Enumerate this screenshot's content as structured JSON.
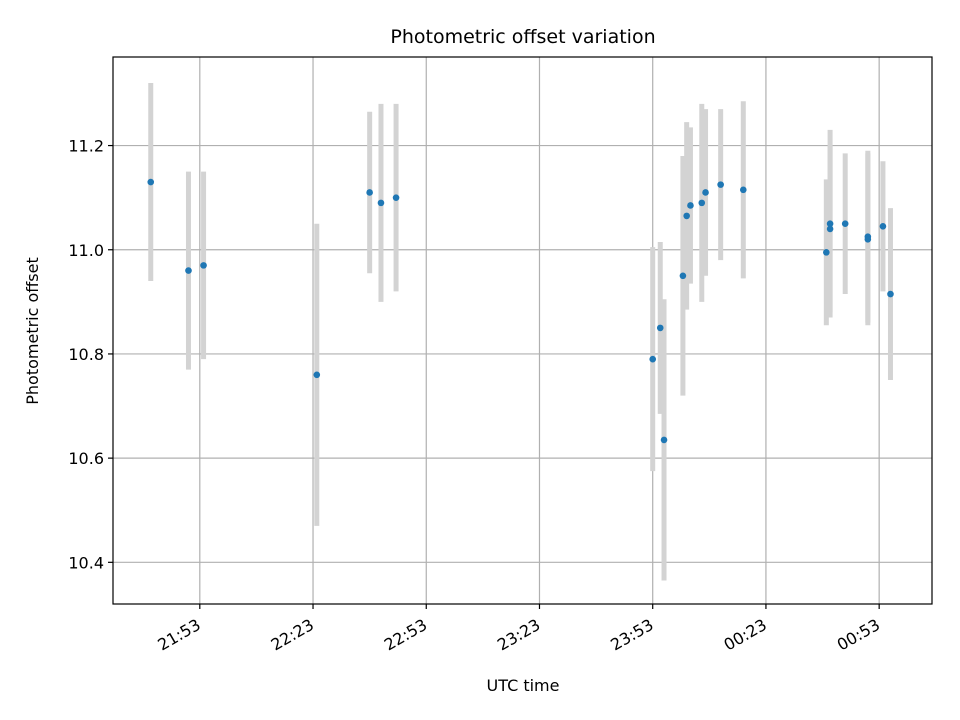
{
  "chart_data": {
    "type": "scatter",
    "title": "Photometric offset variation",
    "xlabel": "UTC time",
    "ylabel": "Photometric offset",
    "x_type": "time",
    "xlim": [
      "21:30",
      "01:07"
    ],
    "ylim": [
      10.32,
      11.37
    ],
    "x_ticks": [
      "21:53",
      "22:23",
      "22:53",
      "23:23",
      "23:53",
      "00:23",
      "00:53"
    ],
    "y_ticks": [
      10.4,
      10.6,
      10.8,
      11.0,
      11.2
    ],
    "grid": true,
    "marker_color": "#1f77b4",
    "errorbar_color": "#d3d3d3",
    "points": [
      {
        "x": "21:40",
        "y": 11.13,
        "err": 0.19
      },
      {
        "x": "21:50",
        "y": 10.96,
        "err": 0.19
      },
      {
        "x": "21:54",
        "y": 10.97,
        "err": 0.18
      },
      {
        "x": "22:24",
        "y": 10.76,
        "err": 0.29
      },
      {
        "x": "22:38",
        "y": 11.11,
        "err": 0.155
      },
      {
        "x": "22:41",
        "y": 11.09,
        "err": 0.19
      },
      {
        "x": "22:45",
        "y": 11.1,
        "err": 0.18
      },
      {
        "x": "23:53",
        "y": 10.79,
        "err": 0.215
      },
      {
        "x": "23:55",
        "y": 10.85,
        "err": 0.165
      },
      {
        "x": "23:56",
        "y": 10.635,
        "err": 0.27
      },
      {
        "x": "00:01",
        "y": 10.95,
        "err": 0.23
      },
      {
        "x": "00:02",
        "y": 11.065,
        "err": 0.18
      },
      {
        "x": "00:03",
        "y": 11.085,
        "err": 0.15
      },
      {
        "x": "00:06",
        "y": 11.09,
        "err": 0.19
      },
      {
        "x": "00:07",
        "y": 11.11,
        "err": 0.16
      },
      {
        "x": "00:11",
        "y": 11.125,
        "err": 0.145
      },
      {
        "x": "00:17",
        "y": 11.115,
        "err": 0.17
      },
      {
        "x": "00:39",
        "y": 10.995,
        "err": 0.14
      },
      {
        "x": "00:40",
        "y": 11.05,
        "err": 0.18
      },
      {
        "x": "00:40",
        "y": 11.04,
        "err": 0.16
      },
      {
        "x": "00:44",
        "y": 11.05,
        "err": 0.135
      },
      {
        "x": "00:50",
        "y": 11.025,
        "err": 0.165
      },
      {
        "x": "00:50",
        "y": 11.02,
        "err": 0.165
      },
      {
        "x": "00:54",
        "y": 11.045,
        "err": 0.125
      },
      {
        "x": "00:56",
        "y": 10.915,
        "err": 0.165
      }
    ]
  }
}
